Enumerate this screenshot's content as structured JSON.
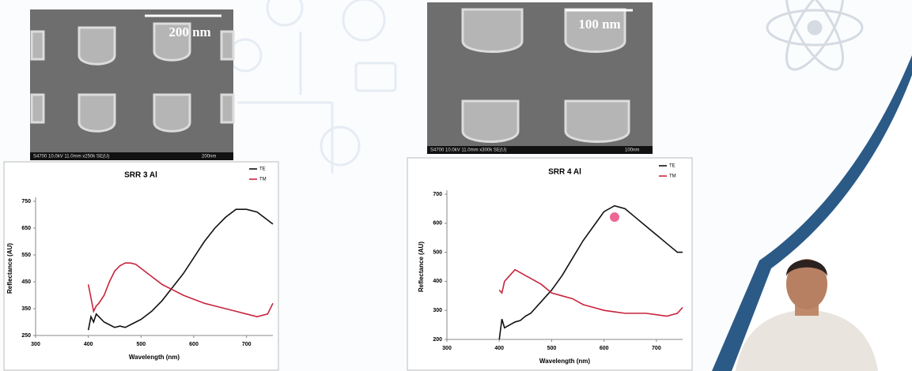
{
  "images": [
    {
      "scale_label": "200 nm",
      "info": "S4700 10.0kV 11.0mm x250k SE(U)",
      "bar_label": "200nm"
    },
    {
      "scale_label": "100 nm",
      "info": "S4700 10.0kV 11.0mm x300k SE(U)",
      "bar_label": "100nm"
    }
  ],
  "chart_data": [
    {
      "type": "line",
      "title": "SRR 3 Al",
      "x_label": "Wavelength (nm)",
      "y_label": "Reflectance (AU)",
      "xlim": [
        300,
        750
      ],
      "xticks": [
        300,
        400,
        500,
        600,
        700
      ],
      "ylim": [
        250,
        750
      ],
      "yticks": [
        250,
        350,
        450,
        550,
        650,
        750
      ],
      "legend": "top-right",
      "x": [
        400,
        405,
        410,
        415,
        420,
        430,
        440,
        450,
        460,
        470,
        480,
        490,
        500,
        520,
        540,
        560,
        580,
        600,
        620,
        640,
        660,
        680,
        700,
        720,
        740,
        750
      ],
      "series": [
        {
          "name": "TE",
          "color": "#111111",
          "values": [
            270,
            320,
            300,
            330,
            320,
            300,
            290,
            280,
            285,
            280,
            290,
            300,
            310,
            340,
            380,
            430,
            480,
            540,
            600,
            650,
            690,
            720,
            720,
            710,
            680,
            665
          ]
        },
        {
          "name": "TM",
          "color": "#c8243c",
          "values": [
            440,
            390,
            340,
            360,
            370,
            400,
            450,
            490,
            510,
            520,
            520,
            515,
            500,
            470,
            440,
            420,
            400,
            385,
            370,
            360,
            350,
            340,
            330,
            320,
            330,
            370
          ]
        }
      ]
    },
    {
      "type": "line",
      "title": "SRR 4 Al",
      "x_label": "Wavelength (nm)",
      "y_label": "Reflectance (AU)",
      "xlim": [
        300,
        750
      ],
      "xticks": [
        300,
        400,
        500,
        600,
        700
      ],
      "ylim": [
        200,
        700
      ],
      "yticks": [
        200,
        300,
        400,
        500,
        600,
        700
      ],
      "legend": "top-right",
      "x": [
        400,
        405,
        410,
        420,
        430,
        440,
        450,
        460,
        480,
        500,
        520,
        540,
        560,
        580,
        600,
        620,
        640,
        660,
        680,
        700,
        720,
        740,
        750
      ],
      "series": [
        {
          "name": "TE",
          "color": "#111111",
          "values": [
            200,
            270,
            240,
            250,
            260,
            265,
            280,
            290,
            330,
            370,
            420,
            480,
            540,
            590,
            640,
            660,
            650,
            620,
            590,
            560,
            530,
            500,
            500
          ]
        },
        {
          "name": "TM",
          "color": "#c8243c",
          "values": [
            370,
            360,
            400,
            420,
            440,
            430,
            420,
            410,
            390,
            360,
            350,
            340,
            320,
            310,
            300,
            295,
            290,
            290,
            290,
            285,
            280,
            290,
            310
          ]
        }
      ]
    }
  ]
}
